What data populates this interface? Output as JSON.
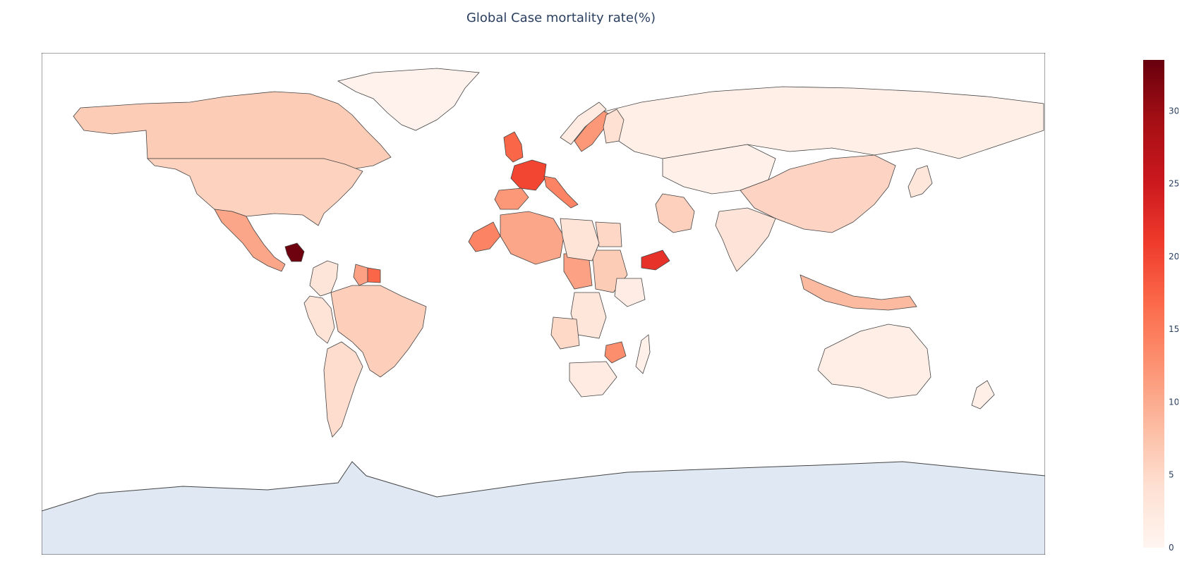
{
  "title": "Global Case mortality rate(%)",
  "colorbar": {
    "ticks": [
      "0",
      "5",
      "10",
      "15",
      "20",
      "25",
      "30"
    ],
    "range": [
      0,
      33.5
    ],
    "colorscale": [
      "#fff5f0",
      "#fee0d2",
      "#fcbba1",
      "#fc9272",
      "#fb6a4a",
      "#ef3b2c",
      "#cb181d",
      "#a50f15",
      "#67000d"
    ]
  },
  "map": {
    "no_data_color": "#dfe8f3",
    "border_color": "#444444"
  },
  "regions": [
    {
      "name": "Greenland",
      "value": 0.5
    },
    {
      "name": "Canada",
      "value": 6.5
    },
    {
      "name": "United States",
      "value": 5.8
    },
    {
      "name": "Mexico",
      "value": 10.5
    },
    {
      "name": "Nicaragua",
      "value": 33
    },
    {
      "name": "Brazil",
      "value": 6.2
    },
    {
      "name": "Argentina",
      "value": 4.5
    },
    {
      "name": "Colombia",
      "value": 3.2
    },
    {
      "name": "Peru",
      "value": 3.5
    },
    {
      "name": "Guyana",
      "value": 11
    },
    {
      "name": "Suriname",
      "value": 17
    },
    {
      "name": "Russia",
      "value": 1.2
    },
    {
      "name": "Kazakhstan",
      "value": 0.8
    },
    {
      "name": "China",
      "value": 5.5
    },
    {
      "name": "India",
      "value": 3.3
    },
    {
      "name": "Iran",
      "value": 6.0
    },
    {
      "name": "Yemen",
      "value": 22
    },
    {
      "name": "France",
      "value": 20
    },
    {
      "name": "United Kingdom",
      "value": 17
    },
    {
      "name": "Italy",
      "value": 14
    },
    {
      "name": "Spain",
      "value": 12
    },
    {
      "name": "Sweden",
      "value": 12
    },
    {
      "name": "Norway",
      "value": 2
    },
    {
      "name": "Finland",
      "value": 4
    },
    {
      "name": "Algeria",
      "value": 10.5
    },
    {
      "name": "Western Sahara",
      "value": 14
    },
    {
      "name": "Egypt",
      "value": 5.2
    },
    {
      "name": "Chad",
      "value": 11
    },
    {
      "name": "Sudan",
      "value": 6.5
    },
    {
      "name": "Libya",
      "value": 3.5
    },
    {
      "name": "DR Congo",
      "value": 3.0
    },
    {
      "name": "Angola",
      "value": 5.0
    },
    {
      "name": "Zimbabwe",
      "value": 13
    },
    {
      "name": "South Africa",
      "value": 2.0
    },
    {
      "name": "Ethiopia",
      "value": 1.5
    },
    {
      "name": "Madagascar",
      "value": 1.0
    },
    {
      "name": "Indonesia",
      "value": 8.5
    },
    {
      "name": "Australia",
      "value": 1.4
    },
    {
      "name": "Japan",
      "value": 3.0
    },
    {
      "name": "New Zealand",
      "value": 1.2
    }
  ]
}
